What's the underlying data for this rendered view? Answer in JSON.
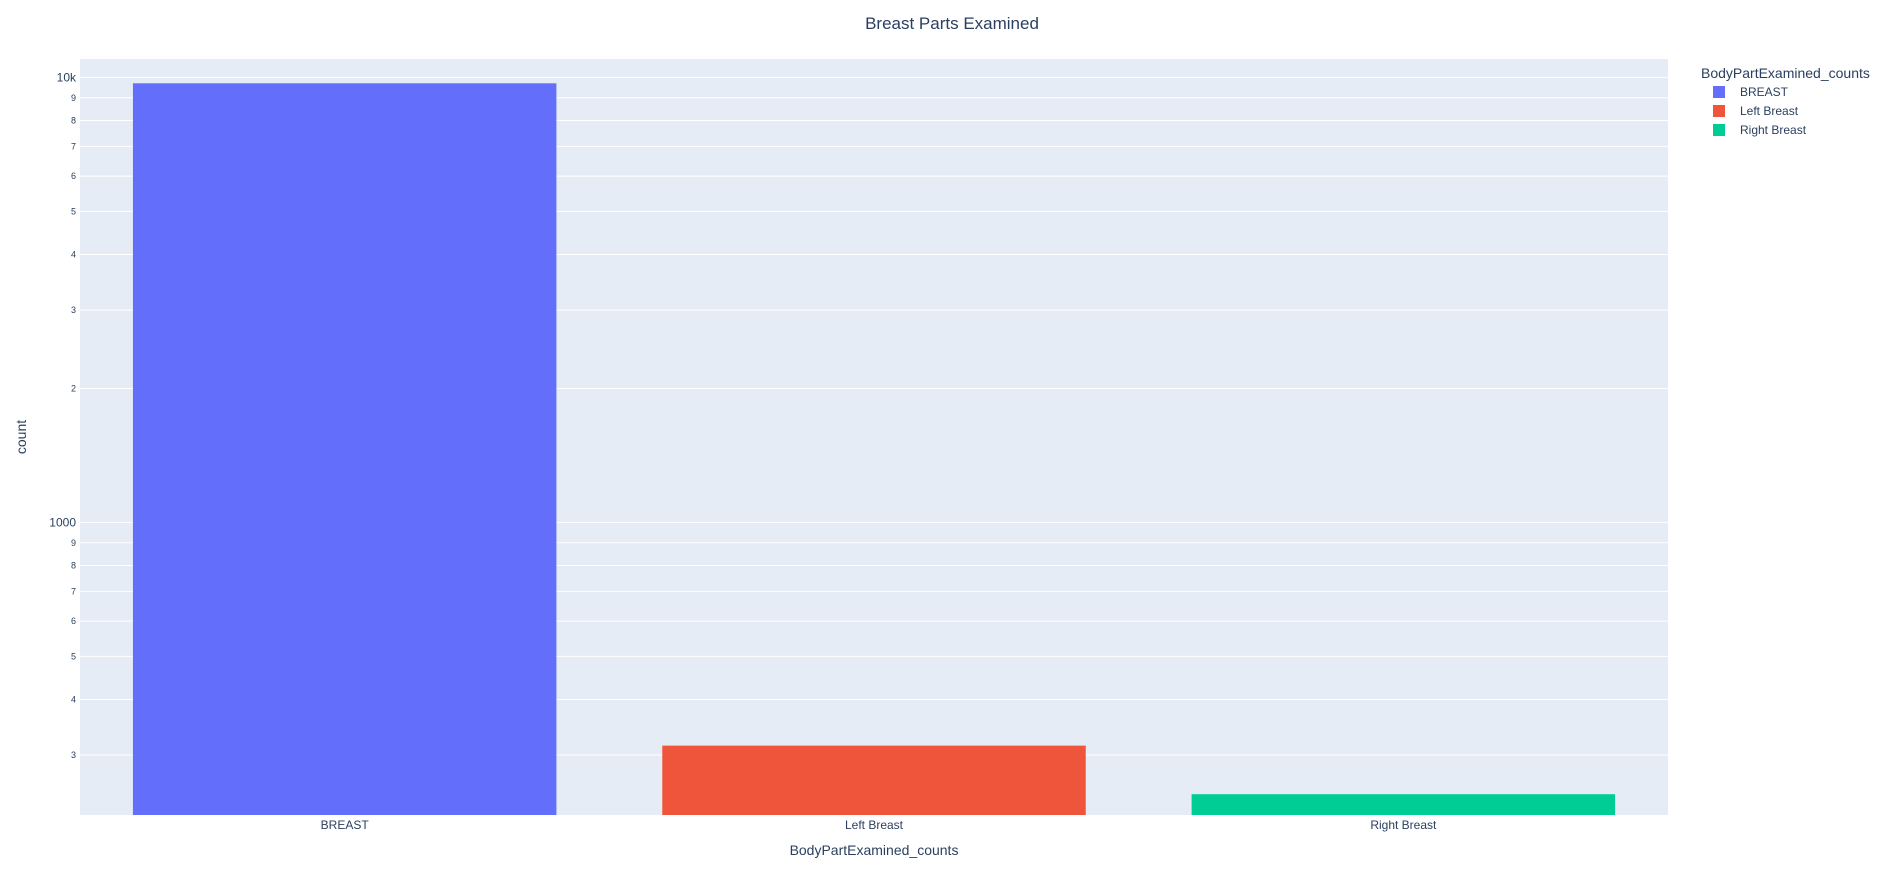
{
  "chart_data": {
    "type": "bar",
    "title": "Breast Parts Examined",
    "xlabel": "BodyPartExamined_counts",
    "ylabel": "count",
    "y_scale": "log",
    "y_range": [
      220,
      11000
    ],
    "grid": true,
    "legend_title": "BodyPartExamined_counts",
    "legend_position": "right",
    "categories": [
      "BREAST",
      "Left Breast",
      "Right Breast"
    ],
    "values": [
      9700,
      315,
      245
    ],
    "colors": [
      "#636efa",
      "#ef553b",
      "#00cc96"
    ],
    "y_ticks": [
      {
        "value": 1000,
        "label": "1000",
        "major": true
      },
      {
        "value": 2000,
        "label": "2",
        "major": false
      },
      {
        "value": 3000,
        "label": "3",
        "major": false
      },
      {
        "value": 4000,
        "label": "4",
        "major": false
      },
      {
        "value": 5000,
        "label": "5",
        "major": false
      },
      {
        "value": 6000,
        "label": "6",
        "major": false
      },
      {
        "value": 7000,
        "label": "7",
        "major": false
      },
      {
        "value": 8000,
        "label": "8",
        "major": false
      },
      {
        "value": 9000,
        "label": "9",
        "major": false
      },
      {
        "value": 10000,
        "label": "10k",
        "major": true
      },
      {
        "value": 300,
        "label": "3",
        "major": false
      },
      {
        "value": 400,
        "label": "4",
        "major": false
      },
      {
        "value": 500,
        "label": "5",
        "major": false
      },
      {
        "value": 600,
        "label": "6",
        "major": false
      },
      {
        "value": 700,
        "label": "7",
        "major": false
      },
      {
        "value": 800,
        "label": "8",
        "major": false
      },
      {
        "value": 900,
        "label": "9",
        "major": false
      }
    ],
    "colors_theme": {
      "plot_bg": "#e5ecf6",
      "grid": "#ffffff",
      "text": "#2a3f5f"
    }
  }
}
